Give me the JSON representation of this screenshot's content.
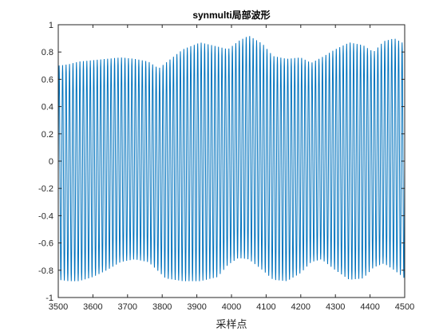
{
  "chart_data": {
    "type": "line",
    "title": "synmulti局部波形",
    "xlabel": "采样点",
    "ylabel": "",
    "xlim": [
      3500,
      4500
    ],
    "ylim": [
      -1,
      1
    ],
    "xticks": [
      3500,
      3600,
      3700,
      3800,
      3900,
      4000,
      4100,
      4200,
      4300,
      4400,
      4500
    ],
    "yticks": [
      -1,
      -0.8,
      -0.6,
      -0.4,
      -0.2,
      0,
      0.2,
      0.4,
      0.6,
      0.8,
      1
    ],
    "grid": false,
    "line_color": "#0072BD",
    "signal": {
      "cycles_in_window": 100,
      "envelope_points": [
        {
          "x": 3500,
          "upper": 0.7,
          "lower": -0.87
        },
        {
          "x": 3530,
          "upper": 0.71,
          "lower": -0.88
        },
        {
          "x": 3560,
          "upper": 0.73,
          "lower": -0.88
        },
        {
          "x": 3600,
          "upper": 0.74,
          "lower": -0.85
        },
        {
          "x": 3640,
          "upper": 0.75,
          "lower": -0.8
        },
        {
          "x": 3680,
          "upper": 0.76,
          "lower": -0.74
        },
        {
          "x": 3720,
          "upper": 0.75,
          "lower": -0.72
        },
        {
          "x": 3760,
          "upper": 0.73,
          "lower": -0.74
        },
        {
          "x": 3790,
          "upper": 0.68,
          "lower": -0.81
        },
        {
          "x": 3810,
          "upper": 0.72,
          "lower": -0.86
        },
        {
          "x": 3860,
          "upper": 0.82,
          "lower": -0.88
        },
        {
          "x": 3910,
          "upper": 0.87,
          "lower": -0.88
        },
        {
          "x": 3960,
          "upper": 0.84,
          "lower": -0.85
        },
        {
          "x": 3990,
          "upper": 0.82,
          "lower": -0.76
        },
        {
          "x": 4020,
          "upper": 0.88,
          "lower": -0.71
        },
        {
          "x": 4050,
          "upper": 0.92,
          "lower": -0.72
        },
        {
          "x": 4090,
          "upper": 0.86,
          "lower": -0.8
        },
        {
          "x": 4120,
          "upper": 0.77,
          "lower": -0.87
        },
        {
          "x": 4160,
          "upper": 0.75,
          "lower": -0.88
        },
        {
          "x": 4200,
          "upper": 0.76,
          "lower": -0.82
        },
        {
          "x": 4230,
          "upper": 0.72,
          "lower": -0.74
        },
        {
          "x": 4260,
          "upper": 0.76,
          "lower": -0.72
        },
        {
          "x": 4300,
          "upper": 0.82,
          "lower": -0.8
        },
        {
          "x": 4340,
          "upper": 0.87,
          "lower": -0.87
        },
        {
          "x": 4380,
          "upper": 0.85,
          "lower": -0.86
        },
        {
          "x": 4410,
          "upper": 0.8,
          "lower": -0.78
        },
        {
          "x": 4440,
          "upper": 0.88,
          "lower": -0.75
        },
        {
          "x": 4470,
          "upper": 0.9,
          "lower": -0.8
        },
        {
          "x": 4500,
          "upper": 0.86,
          "lower": -0.86
        }
      ]
    }
  }
}
